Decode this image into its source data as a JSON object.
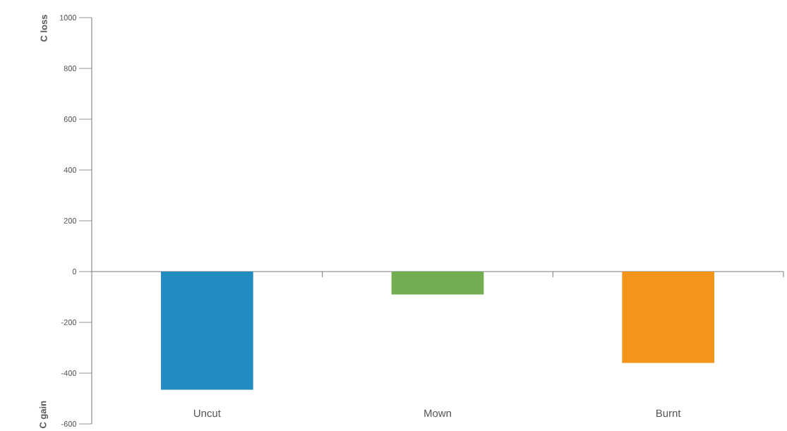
{
  "chart_data": {
    "type": "bar",
    "categories": [
      "Uncut",
      "Mown",
      "Burnt"
    ],
    "values": [
      -465,
      -90,
      -360
    ],
    "colors": [
      "#228bc0",
      "#72ae51",
      "#f4951b"
    ],
    "ylim": [
      -600,
      1000
    ],
    "yticks": [
      -600,
      -400,
      -200,
      0,
      200,
      400,
      600,
      800,
      1000
    ],
    "annotations": [
      "C loss",
      "C gain"
    ]
  }
}
